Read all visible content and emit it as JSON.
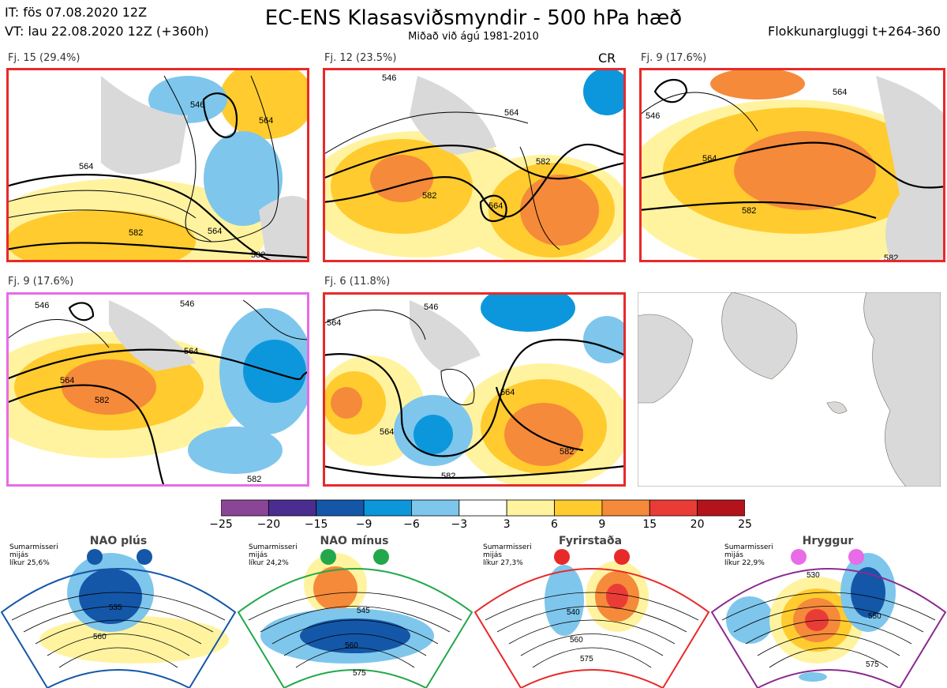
{
  "header": {
    "it": "IT: fös 07.08.2020 12Z",
    "vt": "VT: lau 22.08.2020 12Z  (+360h)",
    "title": "EC-ENS Klasasviðsmyndir - 500 hPa hæð",
    "subtitle": "Miðað við ágú 1981-2010",
    "window": "Flokkunargluggi t+264-360"
  },
  "clusters": [
    {
      "label": "Fj. 15 (29.4%)",
      "border": "#e8292a",
      "contour_labels": [
        "546",
        "564",
        "564",
        "564",
        "582",
        "582"
      ]
    },
    {
      "label": "Fj. 12 (23.5%)",
      "tag": "CR",
      "border": "#e8292a",
      "contour_labels": [
        "546",
        "564",
        "564",
        "582",
        "582"
      ]
    },
    {
      "label": "Fj. 9 (17.6%)",
      "border": "#e8292a",
      "contour_labels": [
        "546",
        "564",
        "564",
        "582",
        "582"
      ]
    },
    {
      "label": "Fj. 9 (17.6%)",
      "border": "#e86be8",
      "contour_labels": [
        "546",
        "546",
        "564",
        "564",
        "582",
        "582"
      ]
    },
    {
      "label": "Fj. 6 (11.8%)",
      "border": "#e8292a",
      "contour_labels": [
        "546",
        "564",
        "564",
        "564",
        "582",
        "582"
      ]
    }
  ],
  "colorbar": {
    "ticks": [
      "−25",
      "−20",
      "−15",
      "−9",
      "−6",
      "−3",
      "3",
      "6",
      "9",
      "15",
      "20",
      "25"
    ],
    "colors": [
      "#8b4597",
      "#4b2d8f",
      "#1457a8",
      "#0c97dc",
      "#7ec6ec",
      "#ffffff",
      "#fff3a0",
      "#ffcb2e",
      "#f58a3a",
      "#ea3c36",
      "#b3141b"
    ]
  },
  "regimes": [
    {
      "title": "NAO plús",
      "note": [
        "Sumarmisseri",
        "mijás",
        "líkur 25,6%"
      ],
      "color": "#1457a8",
      "labels": [
        "535",
        "560"
      ]
    },
    {
      "title": "NAO mínus",
      "note": [
        "Sumarmisseri",
        "mijás",
        "líkur 24,2%"
      ],
      "color": "#22a84a",
      "labels": [
        "545",
        "560",
        "575"
      ]
    },
    {
      "title": "Fyrirstaða",
      "note": [
        "Sumarmisseri",
        "mijás",
        "líkur 27,3%"
      ],
      "color": "#e8292a",
      "labels": [
        "540",
        "560",
        "575"
      ]
    },
    {
      "title": "Hryggur",
      "note": [
        "Sumarmisseri",
        "mijás",
        "líkur 22,9%"
      ],
      "color": "#e86be8",
      "labels": [
        "530",
        "550",
        "575"
      ]
    }
  ]
}
